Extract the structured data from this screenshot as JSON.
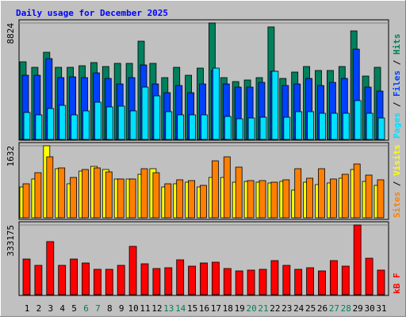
{
  "chart_data": [
    {
      "type": "bar",
      "title": "Daily usage for December 2025",
      "ylim": [
        0,
        8824
      ],
      "yticks": [
        8824
      ],
      "legend_separator": " / ",
      "series": [
        {
          "name": "Hits",
          "color": "#00805c",
          "values": [
            5883,
            5463,
            6603,
            5463,
            5463,
            5583,
            5823,
            5523,
            5763,
            5763,
            7444,
            5763,
            4682,
            5463,
            4862,
            5403,
            8824,
            4682,
            4382,
            4502,
            4682,
            8524,
            4622,
            5103,
            5523,
            5223,
            5223,
            5523,
            8224,
            4802,
            5463
          ]
        },
        {
          "name": "Files",
          "color": "#0040ff",
          "values": [
            4862,
            4862,
            6123,
            4682,
            4742,
            4682,
            5043,
            4622,
            4202,
            4682,
            5643,
            4202,
            3542,
            4082,
            3542,
            4202,
            5223,
            4202,
            3962,
            3962,
            4322,
            5163,
            4082,
            4202,
            4622,
            4082,
            4322,
            4622,
            6843,
            3962,
            3662
          ]
        },
        {
          "name": "Pages",
          "color": "#00e0ff",
          "values": [
            2041,
            1861,
            2341,
            2581,
            1861,
            2161,
            2821,
            2461,
            2521,
            2161,
            3962,
            3302,
            2101,
            1861,
            1861,
            1861,
            5403,
            1741,
            1561,
            1621,
            1681,
            5163,
            1681,
            2101,
            2101,
            1981,
            1981,
            1981,
            2941,
            1981,
            1621
          ]
        }
      ]
    },
    {
      "type": "bar",
      "ylim": [
        0,
        1632
      ],
      "yticks": [
        1632
      ],
      "legend_separator": " / ",
      "series": [
        {
          "name": "Visits",
          "color": "#ffff00",
          "values": [
            699,
            879,
            1632,
            1112,
            771,
            1058,
            1165,
            1094,
            879,
            879,
            986,
            1112,
            699,
            771,
            807,
            699,
            914,
            914,
            807,
            825,
            807,
            789,
            825,
            628,
            807,
            753,
            789,
            897,
            1094,
            825,
            735
          ]
        },
        {
          "name": "Sites",
          "color": "#ff8000",
          "values": [
            771,
            1022,
            1381,
            1130,
            914,
            1094,
            1130,
            1040,
            879,
            879,
            1112,
            1022,
            771,
            861,
            843,
            735,
            1291,
            1381,
            1148,
            843,
            843,
            807,
            861,
            1112,
            897,
            1112,
            879,
            986,
            1219,
            968,
            861
          ]
        }
      ]
    },
    {
      "type": "bar",
      "ylim": [
        0,
        333175
      ],
      "yticks": [
        333175
      ],
      "categories": [
        "1",
        "2",
        "3",
        "4",
        "5",
        "6",
        "7",
        "8",
        "9",
        "10",
        "11",
        "12",
        "13",
        "14",
        "15",
        "16",
        "17",
        "18",
        "19",
        "20",
        "21",
        "22",
        "23",
        "24",
        "25",
        "26",
        "27",
        "28",
        "29",
        "30",
        "31"
      ],
      "category_colors": [
        "#000000",
        "#000000",
        "#000000",
        "#000000",
        "#000000",
        "#00805c",
        "#00805c",
        "#000000",
        "#000000",
        "#000000",
        "#000000",
        "#000000",
        "#00805c",
        "#00805c",
        "#000000",
        "#000000",
        "#000000",
        "#000000",
        "#000000",
        "#00805c",
        "#00805c",
        "#000000",
        "#000000",
        "#000000",
        "#000000",
        "#000000",
        "#00805c",
        "#00805c",
        "#000000",
        "#000000",
        "#000000"
      ],
      "series": [
        {
          "name": "kB F",
          "color": "#ff0000",
          "values": [
            170370,
            140080,
            253660,
            140080,
            170370,
            151440,
            121150,
            121150,
            140080,
            230950,
            147650,
            124940,
            128720,
            166580,
            136300,
            151440,
            155230,
            124940,
            113580,
            117370,
            121150,
            162800,
            140080,
            121150,
            128720,
            113580,
            162800,
            136300,
            333175,
            174160,
            117370
          ]
        }
      ]
    }
  ]
}
